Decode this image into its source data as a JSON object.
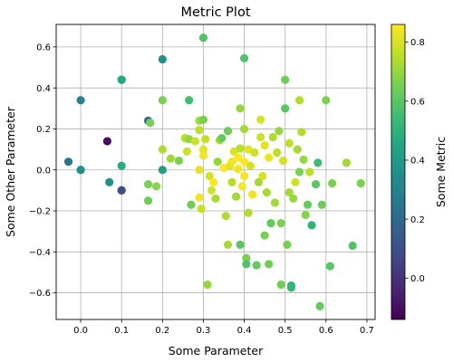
{
  "chart_data": {
    "type": "scatter",
    "title": "Metric Plot",
    "xlabel": "Some Parameter",
    "ylabel": "Some Other Parameter",
    "colorbar_label": "Some Metric",
    "xlim": [
      -0.06,
      0.72
    ],
    "ylim": [
      -0.73,
      0.71
    ],
    "xticks": [
      0.0,
      0.1,
      0.2,
      0.3,
      0.4,
      0.5,
      0.6,
      0.7
    ],
    "xtick_labels": [
      "0.0",
      "0.1",
      "0.2",
      "0.3",
      "0.4",
      "0.5",
      "0.6",
      "0.7"
    ],
    "yticks": [
      -0.6,
      -0.4,
      -0.2,
      0.0,
      0.2,
      0.4,
      0.6
    ],
    "ytick_labels": [
      "−0.6",
      "−0.4",
      "−0.2",
      "0.0",
      "0.2",
      "0.4",
      "0.6"
    ],
    "clim": [
      -0.14,
      0.86
    ],
    "cticks": [
      0.0,
      0.2,
      0.4,
      0.6,
      0.8
    ],
    "ctick_labels": [
      "0.0",
      "0.2",
      "0.4",
      "0.6",
      "0.8"
    ],
    "colormap": "viridis",
    "grid": true,
    "points": [
      {
        "x": -0.03,
        "y": 0.04,
        "c": 0.26
      },
      {
        "x": 0.0,
        "y": 0.0,
        "c": 0.3
      },
      {
        "x": 0.0,
        "y": 0.0,
        "c": 0.36
      },
      {
        "x": 0.0,
        "y": 0.34,
        "c": 0.3
      },
      {
        "x": 0.065,
        "y": 0.14,
        "c": -0.1
      },
      {
        "x": 0.07,
        "y": -0.06,
        "c": 0.36
      },
      {
        "x": 0.1,
        "y": 0.44,
        "c": 0.42
      },
      {
        "x": 0.1,
        "y": 0.44,
        "c": 0.46
      },
      {
        "x": 0.1,
        "y": 0.02,
        "c": 0.48
      },
      {
        "x": 0.1,
        "y": -0.1,
        "c": 0.05
      },
      {
        "x": 0.1,
        "y": -0.1,
        "c": 0.1
      },
      {
        "x": 0.165,
        "y": 0.24,
        "c": 0.22
      },
      {
        "x": 0.17,
        "y": 0.23,
        "c": 0.65
      },
      {
        "x": 0.165,
        "y": -0.07,
        "c": 0.66
      },
      {
        "x": 0.165,
        "y": -0.15,
        "c": 0.64
      },
      {
        "x": 0.185,
        "y": -0.08,
        "c": 0.68
      },
      {
        "x": 0.2,
        "y": 0.54,
        "c": 0.36
      },
      {
        "x": 0.2,
        "y": 0.34,
        "c": 0.66
      },
      {
        "x": 0.2,
        "y": 0.1,
        "c": 0.74
      },
      {
        "x": 0.2,
        "y": 0.0,
        "c": 0.42
      },
      {
        "x": 0.22,
        "y": 0.055,
        "c": 0.72
      },
      {
        "x": 0.24,
        "y": 0.045,
        "c": 0.66
      },
      {
        "x": 0.255,
        "y": 0.155,
        "c": 0.75
      },
      {
        "x": 0.26,
        "y": 0.09,
        "c": 0.78
      },
      {
        "x": 0.265,
        "y": 0.34,
        "c": 0.55
      },
      {
        "x": 0.265,
        "y": 0.15,
        "c": 0.7
      },
      {
        "x": 0.27,
        "y": -0.17,
        "c": 0.64
      },
      {
        "x": 0.28,
        "y": 0.14,
        "c": 0.78
      },
      {
        "x": 0.29,
        "y": 0.24,
        "c": 0.72
      },
      {
        "x": 0.29,
        "y": 0.195,
        "c": 0.76
      },
      {
        "x": 0.29,
        "y": 0.0,
        "c": 0.82
      },
      {
        "x": 0.29,
        "y": -0.135,
        "c": 0.84
      },
      {
        "x": 0.295,
        "y": -0.19,
        "c": 0.77
      },
      {
        "x": 0.3,
        "y": 0.645,
        "c": 0.58
      },
      {
        "x": 0.3,
        "y": 0.245,
        "c": 0.66
      },
      {
        "x": 0.3,
        "y": 0.1,
        "c": 0.82
      },
      {
        "x": 0.3,
        "y": 0.07,
        "c": 0.84
      },
      {
        "x": 0.305,
        "y": 0.15,
        "c": 0.77
      },
      {
        "x": 0.31,
        "y": -0.56,
        "c": 0.7
      },
      {
        "x": 0.315,
        "y": -0.03,
        "c": 0.8
      },
      {
        "x": 0.32,
        "y": -0.1,
        "c": 0.79
      },
      {
        "x": 0.325,
        "y": -0.06,
        "c": 0.85
      },
      {
        "x": 0.33,
        "y": -0.14,
        "c": 0.73
      },
      {
        "x": 0.335,
        "y": 0.04,
        "c": 0.7
      },
      {
        "x": 0.34,
        "y": 0.145,
        "c": 0.72
      },
      {
        "x": 0.345,
        "y": 0.155,
        "c": 0.62
      },
      {
        "x": 0.35,
        "y": 0.01,
        "c": 0.86
      },
      {
        "x": 0.355,
        "y": -0.225,
        "c": 0.74
      },
      {
        "x": 0.36,
        "y": -0.365,
        "c": 0.73
      },
      {
        "x": 0.36,
        "y": 0.19,
        "c": 0.64
      },
      {
        "x": 0.365,
        "y": 0.02,
        "c": 0.82
      },
      {
        "x": 0.37,
        "y": 0.04,
        "c": 0.84
      },
      {
        "x": 0.37,
        "y": -0.06,
        "c": 0.75
      },
      {
        "x": 0.375,
        "y": 0.09,
        "c": 0.8
      },
      {
        "x": 0.38,
        "y": -0.13,
        "c": 0.72
      },
      {
        "x": 0.385,
        "y": 0.06,
        "c": 0.86
      },
      {
        "x": 0.385,
        "y": 0.005,
        "c": 0.84
      },
      {
        "x": 0.39,
        "y": 0.3,
        "c": 0.7
      },
      {
        "x": 0.39,
        "y": -0.365,
        "c": 0.6
      },
      {
        "x": 0.39,
        "y": 0.105,
        "c": 0.75
      },
      {
        "x": 0.395,
        "y": -0.08,
        "c": 0.85
      },
      {
        "x": 0.4,
        "y": 0.545,
        "c": 0.58
      },
      {
        "x": 0.4,
        "y": 0.2,
        "c": 0.72
      },
      {
        "x": 0.4,
        "y": 0.04,
        "c": 0.86
      },
      {
        "x": 0.4,
        "y": -0.03,
        "c": 0.85
      },
      {
        "x": 0.405,
        "y": -0.43,
        "c": 0.66
      },
      {
        "x": 0.405,
        "y": -0.46,
        "c": 0.58
      },
      {
        "x": 0.41,
        "y": 0.1,
        "c": 0.82
      },
      {
        "x": 0.41,
        "y": -0.21,
        "c": 0.74
      },
      {
        "x": 0.415,
        "y": 0.02,
        "c": 0.8
      },
      {
        "x": 0.42,
        "y": -0.12,
        "c": 0.84
      },
      {
        "x": 0.425,
        "y": 0.085,
        "c": 0.78
      },
      {
        "x": 0.43,
        "y": -0.465,
        "c": 0.62
      },
      {
        "x": 0.435,
        "y": -0.06,
        "c": 0.72
      },
      {
        "x": 0.44,
        "y": 0.245,
        "c": 0.8
      },
      {
        "x": 0.44,
        "y": 0.16,
        "c": 0.78
      },
      {
        "x": 0.445,
        "y": -0.03,
        "c": 0.8
      },
      {
        "x": 0.45,
        "y": -0.32,
        "c": 0.66
      },
      {
        "x": 0.45,
        "y": 0.12,
        "c": 0.82
      },
      {
        "x": 0.455,
        "y": -0.11,
        "c": 0.73
      },
      {
        "x": 0.46,
        "y": -0.46,
        "c": 0.64
      },
      {
        "x": 0.46,
        "y": 0.06,
        "c": 0.84
      },
      {
        "x": 0.465,
        "y": -0.26,
        "c": 0.62
      },
      {
        "x": 0.47,
        "y": 0.16,
        "c": 0.74
      },
      {
        "x": 0.475,
        "y": -0.16,
        "c": 0.72
      },
      {
        "x": 0.48,
        "y": 0.085,
        "c": 0.76
      },
      {
        "x": 0.485,
        "y": 0.19,
        "c": 0.7
      },
      {
        "x": 0.49,
        "y": -0.56,
        "c": 0.64
      },
      {
        "x": 0.49,
        "y": -0.26,
        "c": 0.66
      },
      {
        "x": 0.495,
        "y": 0.045,
        "c": 0.8
      },
      {
        "x": 0.5,
        "y": 0.44,
        "c": 0.64
      },
      {
        "x": 0.5,
        "y": 0.3,
        "c": 0.6
      },
      {
        "x": 0.505,
        "y": -0.365,
        "c": 0.65
      },
      {
        "x": 0.51,
        "y": -0.11,
        "c": 0.72
      },
      {
        "x": 0.51,
        "y": 0.13,
        "c": 0.76
      },
      {
        "x": 0.515,
        "y": -0.565,
        "c": 0.5
      },
      {
        "x": 0.515,
        "y": -0.575,
        "c": 0.52
      },
      {
        "x": 0.52,
        "y": -0.14,
        "c": 0.7
      },
      {
        "x": 0.525,
        "y": -0.06,
        "c": 0.78
      },
      {
        "x": 0.53,
        "y": 0.1,
        "c": 0.72
      },
      {
        "x": 0.535,
        "y": 0.34,
        "c": 0.74
      },
      {
        "x": 0.535,
        "y": -0.01,
        "c": 0.66
      },
      {
        "x": 0.54,
        "y": 0.185,
        "c": 0.74
      },
      {
        "x": 0.545,
        "y": 0.05,
        "c": 0.7
      },
      {
        "x": 0.55,
        "y": -0.22,
        "c": 0.68
      },
      {
        "x": 0.555,
        "y": -0.17,
        "c": 0.62
      },
      {
        "x": 0.56,
        "y": -0.01,
        "c": 0.76
      },
      {
        "x": 0.565,
        "y": -0.27,
        "c": 0.5
      },
      {
        "x": 0.575,
        "y": -0.07,
        "c": 0.6
      },
      {
        "x": 0.58,
        "y": 0.035,
        "c": 0.54
      },
      {
        "x": 0.585,
        "y": -0.665,
        "c": 0.62
      },
      {
        "x": 0.59,
        "y": -0.17,
        "c": 0.64
      },
      {
        "x": 0.6,
        "y": 0.34,
        "c": 0.66
      },
      {
        "x": 0.61,
        "y": -0.47,
        "c": 0.6
      },
      {
        "x": 0.615,
        "y": -0.065,
        "c": 0.66
      },
      {
        "x": 0.65,
        "y": 0.035,
        "c": 0.72
      },
      {
        "x": 0.665,
        "y": -0.37,
        "c": 0.58
      },
      {
        "x": 0.685,
        "y": -0.065,
        "c": 0.66
      }
    ]
  }
}
